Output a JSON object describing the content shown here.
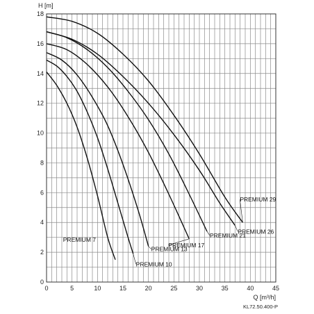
{
  "chart_data": {
    "type": "line",
    "ylabel": "H [m]",
    "xlabel": "Q [m³/h]",
    "xlim": [
      0,
      45
    ],
    "ylim": [
      0,
      18
    ],
    "xticks": [
      0,
      5,
      10,
      15,
      20,
      25,
      30,
      35,
      40,
      45
    ],
    "yticks": [
      2,
      4,
      6,
      8,
      10,
      12,
      14,
      16,
      18
    ],
    "grid": true,
    "note": "KL72.50.400-P",
    "series": [
      {
        "name": "PREMIUM 7",
        "x": [
          0,
          2,
          4,
          6,
          8,
          10,
          12,
          13.5
        ],
        "y": [
          14.1,
          13.2,
          12.0,
          10.4,
          8.3,
          5.8,
          3.0,
          1.5
        ]
      },
      {
        "name": "PREMIUM 10",
        "x": [
          0,
          2,
          4,
          6,
          8,
          10,
          12,
          14,
          16,
          17
        ],
        "y": [
          14.9,
          14.5,
          13.8,
          12.8,
          11.4,
          9.7,
          7.6,
          5.3,
          3.0,
          1.9
        ]
      },
      {
        "name": "PREMIUM 13",
        "x": [
          0,
          3,
          6,
          9,
          12,
          15,
          18,
          20
        ],
        "y": [
          15.4,
          14.9,
          13.9,
          12.4,
          10.5,
          7.9,
          4.8,
          2.4
        ]
      },
      {
        "name": "PREMIUM 17",
        "x": [
          0,
          4,
          8,
          12,
          16,
          20,
          24,
          28
        ],
        "y": [
          16.0,
          15.6,
          14.6,
          13.1,
          11.1,
          8.7,
          5.9,
          2.9
        ]
      },
      {
        "name": "PREMIUM 21",
        "x": [
          0,
          4,
          8,
          12,
          16,
          20,
          24,
          28,
          31.5
        ],
        "y": [
          16.8,
          16.4,
          15.6,
          14.4,
          12.8,
          10.9,
          8.6,
          5.9,
          3.4
        ]
      },
      {
        "name": "PREMIUM 26",
        "x": [
          0,
          5,
          10,
          15,
          20,
          25,
          30,
          34,
          37
        ],
        "y": [
          16.8,
          16.3,
          15.3,
          13.8,
          12.0,
          9.9,
          7.5,
          5.3,
          3.8
        ]
      },
      {
        "name": "PREMIUM 29",
        "x": [
          0,
          5,
          10,
          15,
          20,
          25,
          30,
          35,
          38.5
        ],
        "y": [
          17.8,
          17.5,
          16.7,
          15.3,
          13.5,
          11.2,
          8.6,
          5.7,
          4.0
        ]
      }
    ]
  }
}
